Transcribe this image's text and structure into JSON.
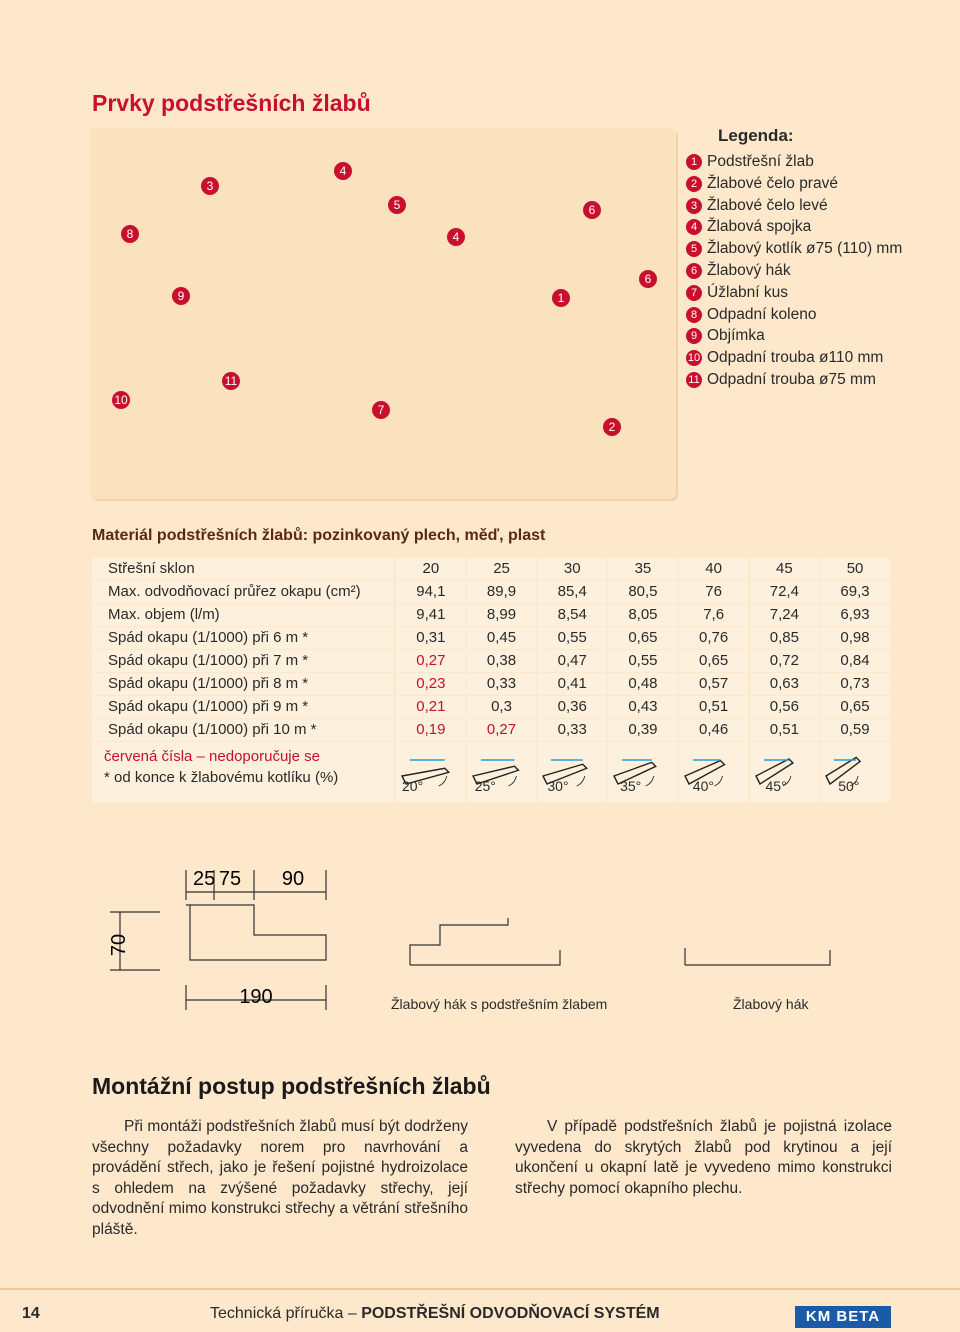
{
  "header": {
    "title": "Prvky podstřešních žlabů"
  },
  "diagram": {
    "callouts": [
      "8",
      "3",
      "4",
      "5",
      "4",
      "6",
      "6",
      "9",
      "1",
      "11",
      "10",
      "7",
      "2"
    ]
  },
  "legend": {
    "title": "Legenda:",
    "items": [
      {
        "number": "1",
        "text": "Podstřešní žlab"
      },
      {
        "number": "2",
        "text": "Žlabové čelo pravé"
      },
      {
        "number": "3",
        "text": "Žlabové čelo levé"
      },
      {
        "number": "4",
        "text": "Žlabová spojka"
      },
      {
        "number": "5",
        "text": "Žlabový kotlík ø75 (110) mm"
      },
      {
        "number": "6",
        "text": "Žlabový hák"
      },
      {
        "number": "7",
        "text": "Úžlabní kus"
      },
      {
        "number": "8",
        "text": "Odpadní koleno"
      },
      {
        "number": "9",
        "text": "Objímka"
      },
      {
        "number": "10",
        "text": "Odpadní trouba ø110 mm"
      },
      {
        "number": "11",
        "text": "Odpadní trouba ø75 mm"
      }
    ]
  },
  "material": {
    "heading": "Materiál podstřešních žlabů: pozinkovaný plech, měď, plast"
  },
  "table": {
    "header": {
      "label": "Střešní sklon",
      "values": [
        "20",
        "25",
        "30",
        "35",
        "40",
        "45",
        "50"
      ]
    },
    "rows": [
      {
        "label": "Max. odvodňovací průřez okapu (cm²)",
        "values": [
          "94,1",
          "89,9",
          "85,4",
          "80,5",
          "76",
          "72,4",
          "69,3"
        ],
        "red": []
      },
      {
        "label": "Max. objem (l/m)",
        "values": [
          "9,41",
          "8,99",
          "8,54",
          "8,05",
          "7,6",
          "7,24",
          "6,93"
        ],
        "red": []
      },
      {
        "label": "Spád okapu (1/1000) při 6 m *",
        "values": [
          "0,31",
          "0,45",
          "0,55",
          "0,65",
          "0,76",
          "0,85",
          "0,98"
        ],
        "red": []
      },
      {
        "label": "Spád okapu (1/1000) při 7 m *",
        "values": [
          "0,27",
          "0,38",
          "0,47",
          "0,55",
          "0,65",
          "0,72",
          "0,84"
        ],
        "red": [
          0
        ]
      },
      {
        "label": "Spád okapu (1/1000) při 8 m *",
        "values": [
          "0,23",
          "0,33",
          "0,41",
          "0,48",
          "0,57",
          "0,63",
          "0,73"
        ],
        "red": [
          0
        ]
      },
      {
        "label": "Spád okapu (1/1000) při 9 m *",
        "values": [
          "0,21",
          "0,3",
          "0,36",
          "0,43",
          "0,51",
          "0,56",
          "0,65"
        ],
        "red": [
          0
        ]
      },
      {
        "label": "Spád okapu (1/1000) při 10 m *",
        "values": [
          "0,19",
          "0,27",
          "0,33",
          "0,39",
          "0,46",
          "0,51",
          "0,59"
        ],
        "red": [
          0,
          1
        ]
      }
    ],
    "notes": [
      "červená čísla – nedoporučuje se",
      "* od konce k žlabovému kotlíku (%)"
    ],
    "angle_labels": [
      "20°",
      "25°",
      "30°",
      "35°",
      "40°",
      "45°",
      "50°"
    ]
  },
  "dimensions": {
    "labels": [
      "25",
      "75",
      "90",
      "70",
      "190"
    ]
  },
  "captions": [
    "Žlabový hák s podstřešním žlabem",
    "Žlabový hák"
  ],
  "assembly": {
    "title": "Montážní postup podstřešních žlabů",
    "paragraphs": [
      "Při montáži podstřešních žlabů musí být dodrženy všechny požadavky norem pro navrhování a provádění střech, jako je řešení pojistné hydroizolace s ohledem na zvýšené požadavky střechy, její odvodnění mimo konstrukci střechy a větrání střešního pláště.",
      "V případě podstřešních žlabů je pojistná izolace vyvedena do skrytých žlabů pod krytinou a její ukončení u okapní latě je vyvedeno mimo konstrukci střechy pomocí okapního plechu."
    ]
  },
  "footer": {
    "page": "14",
    "text": "Technická příručka – ",
    "bold": "PODSTŘEŠNÍ ODVODŇOVACÍ SYSTÉM",
    "logo": "KM BETA"
  }
}
